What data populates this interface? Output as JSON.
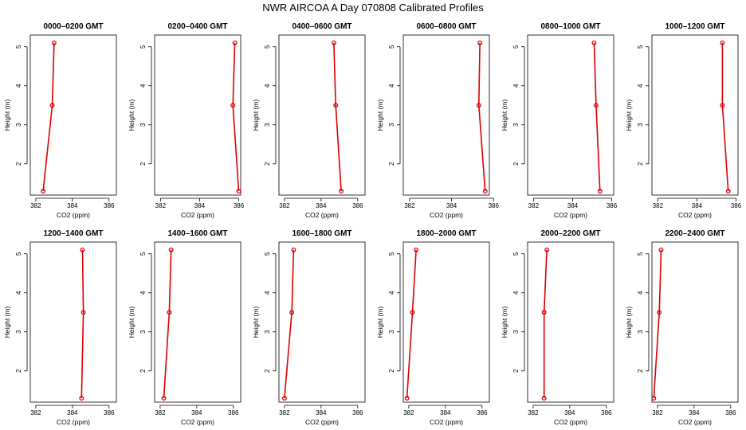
{
  "figure": {
    "title": "NWR AIRCOA A  Day 070808  Calibrated Profiles",
    "colors": {
      "series": "#dd0000",
      "axes": "#000000",
      "background": "#ffffff"
    }
  },
  "chart_data": [
    {
      "type": "line",
      "title": "0000–0200 GMT",
      "xlabel": "CO2 (ppm)",
      "ylabel": "Height (m)",
      "xlim": [
        381.7,
        386.4
      ],
      "ylim": [
        1.2,
        5.3
      ],
      "xticks": [
        382,
        384,
        386
      ],
      "yticks": [
        2,
        3,
        4,
        5
      ],
      "grid": false,
      "series": [
        {
          "x": [
            382.4,
            382.9,
            383.0
          ],
          "y": [
            1.3,
            3.5,
            5.1
          ]
        }
      ]
    },
    {
      "type": "line",
      "title": "0200–0400 GMT",
      "xlabel": "CO2 (ppm)",
      "ylabel": "Height (m)",
      "xlim": [
        381.7,
        386.1
      ],
      "ylim": [
        1.2,
        5.3
      ],
      "xticks": [
        382,
        384,
        386
      ],
      "yticks": [
        2,
        3,
        4,
        5
      ],
      "grid": false,
      "series": [
        {
          "x": [
            386.0,
            385.7,
            385.8
          ],
          "y": [
            1.3,
            3.5,
            5.1
          ]
        }
      ]
    },
    {
      "type": "line",
      "title": "0400–0600 GMT",
      "xlabel": "CO2 (ppm)",
      "ylabel": "Height (m)",
      "xlim": [
        381.7,
        386.4
      ],
      "ylim": [
        1.2,
        5.3
      ],
      "xticks": [
        382,
        384,
        386
      ],
      "yticks": [
        2,
        3,
        4,
        5
      ],
      "grid": false,
      "series": [
        {
          "x": [
            385.1,
            384.8,
            384.7
          ],
          "y": [
            1.3,
            3.5,
            5.1
          ]
        }
      ]
    },
    {
      "type": "line",
      "title": "0600–0800 GMT",
      "xlabel": "CO2 (ppm)",
      "ylabel": "Height (m)",
      "xlim": [
        381.7,
        385.8
      ],
      "ylim": [
        1.2,
        5.3
      ],
      "xticks": [
        382,
        384,
        386
      ],
      "yticks": [
        2,
        3,
        4,
        5
      ],
      "grid": false,
      "series": [
        {
          "x": [
            385.6,
            385.3,
            385.35
          ],
          "y": [
            1.3,
            3.5,
            5.1
          ]
        }
      ]
    },
    {
      "type": "line",
      "title": "0800–1000 GMT",
      "xlabel": "CO2 (ppm)",
      "ylabel": "Height (m)",
      "xlim": [
        381.7,
        386.1
      ],
      "ylim": [
        1.2,
        5.3
      ],
      "xticks": [
        382,
        384,
        386
      ],
      "yticks": [
        2,
        3,
        4,
        5
      ],
      "grid": false,
      "series": [
        {
          "x": [
            385.4,
            385.2,
            385.1
          ],
          "y": [
            1.3,
            3.5,
            5.1
          ]
        }
      ]
    },
    {
      "type": "line",
      "title": "1000–1200 GMT",
      "xlabel": "CO2 (ppm)",
      "ylabel": "Height (m)",
      "xlim": [
        381.7,
        386.1
      ],
      "ylim": [
        1.2,
        5.3
      ],
      "xticks": [
        382,
        384,
        386
      ],
      "yticks": [
        2,
        3,
        4,
        5
      ],
      "grid": false,
      "series": [
        {
          "x": [
            385.6,
            385.3,
            385.3
          ],
          "y": [
            1.3,
            3.5,
            5.1
          ]
        }
      ]
    },
    {
      "type": "line",
      "title": "1200–1400 GMT",
      "xlabel": "CO2 (ppm)",
      "ylabel": "Height (m)",
      "xlim": [
        381.7,
        386.4
      ],
      "ylim": [
        1.2,
        5.3
      ],
      "xticks": [
        382,
        384,
        386
      ],
      "yticks": [
        2,
        3,
        4,
        5
      ],
      "grid": false,
      "series": [
        {
          "x": [
            384.5,
            384.6,
            384.55
          ],
          "y": [
            1.3,
            3.5,
            5.1
          ]
        }
      ]
    },
    {
      "type": "line",
      "title": "1400–1600 GMT",
      "xlabel": "CO2 (ppm)",
      "ylabel": "Height (m)",
      "xlim": [
        381.7,
        386.4
      ],
      "ylim": [
        1.2,
        5.3
      ],
      "xticks": [
        382,
        384,
        386
      ],
      "yticks": [
        2,
        3,
        4,
        5
      ],
      "grid": false,
      "series": [
        {
          "x": [
            382.2,
            382.5,
            382.6
          ],
          "y": [
            1.3,
            3.5,
            5.1
          ]
        }
      ]
    },
    {
      "type": "line",
      "title": "1600–1800 GMT",
      "xlabel": "CO2 (ppm)",
      "ylabel": "Height (m)",
      "xlim": [
        381.7,
        386.4
      ],
      "ylim": [
        1.2,
        5.3
      ],
      "xticks": [
        382,
        384,
        386
      ],
      "yticks": [
        2,
        3,
        4,
        5
      ],
      "grid": false,
      "series": [
        {
          "x": [
            382.0,
            382.4,
            382.5
          ],
          "y": [
            1.3,
            3.5,
            5.1
          ]
        }
      ]
    },
    {
      "type": "line",
      "title": "1800–2000 GMT",
      "xlabel": "CO2 (ppm)",
      "ylabel": "Height (m)",
      "xlim": [
        381.7,
        386.4
      ],
      "ylim": [
        1.2,
        5.3
      ],
      "xticks": [
        382,
        384,
        386
      ],
      "yticks": [
        2,
        3,
        4,
        5
      ],
      "grid": false,
      "series": [
        {
          "x": [
            381.9,
            382.2,
            382.4
          ],
          "y": [
            1.3,
            3.5,
            5.1
          ]
        }
      ]
    },
    {
      "type": "line",
      "title": "2000–2200 GMT",
      "xlabel": "CO2 (ppm)",
      "ylabel": "Height (m)",
      "xlim": [
        381.7,
        386.4
      ],
      "ylim": [
        1.2,
        5.3
      ],
      "xticks": [
        382,
        384,
        386
      ],
      "yticks": [
        2,
        3,
        4,
        5
      ],
      "grid": false,
      "series": [
        {
          "x": [
            382.6,
            382.6,
            382.75
          ],
          "y": [
            1.3,
            3.5,
            5.1
          ]
        }
      ]
    },
    {
      "type": "line",
      "title": "2200–2400 GMT",
      "xlabel": "CO2 (ppm)",
      "ylabel": "Height (m)",
      "xlim": [
        381.7,
        386.4
      ],
      "ylim": [
        1.2,
        5.3
      ],
      "xticks": [
        382,
        384,
        386
      ],
      "yticks": [
        2,
        3,
        4,
        5
      ],
      "grid": false,
      "series": [
        {
          "x": [
            381.8,
            382.1,
            382.2
          ],
          "y": [
            1.3,
            3.5,
            5.1
          ]
        }
      ]
    }
  ]
}
